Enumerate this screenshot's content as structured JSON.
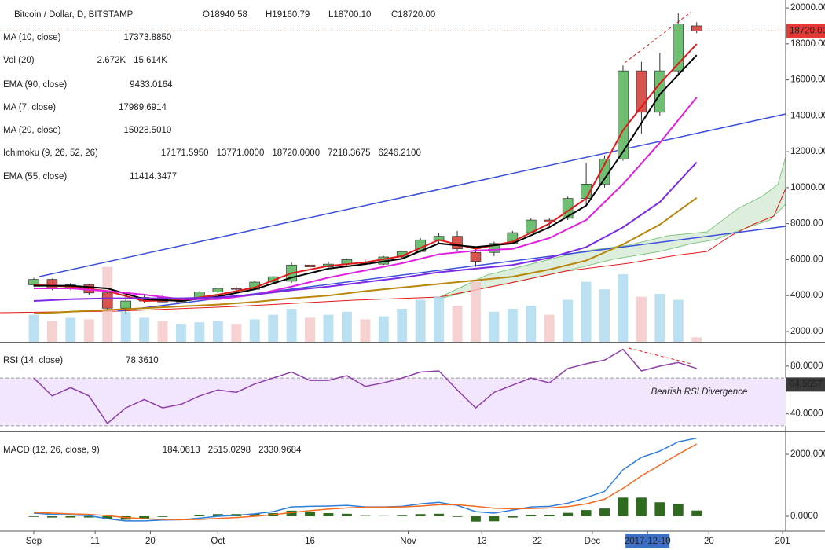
{
  "header": {
    "title": "Bitcoin / Dollar, D, BITSTAMP",
    "ohlc": [
      "O18940.58",
      "H19160.79",
      "L18700.10",
      "C18720.00"
    ]
  },
  "chart_data": [
    {
      "type": "candlestick",
      "legend": [
        {
          "label": "MA (10, close)",
          "values": [
            {
              "text": "17373.8850",
              "color": "#000000"
            }
          ]
        },
        {
          "label": "Vol (20)",
          "values": [
            {
              "text": "2.672K",
              "color": "#000000"
            },
            {
              "text": "15.614K",
              "color": "#2f7ed8"
            }
          ]
        },
        {
          "label": "EMA (90, close)",
          "values": [
            {
              "text": "9433.0164",
              "color": "#b8860b"
            }
          ]
        },
        {
          "label": "MA (7, close)",
          "values": [
            {
              "text": "17989.6914",
              "color": "#e01919"
            }
          ]
        },
        {
          "label": "MA (20, close)",
          "values": [
            {
              "text": "15028.5010",
              "color": "#e020e0"
            }
          ]
        },
        {
          "label": "Ichimoku (9, 26, 52, 26)",
          "values": [
            {
              "text": "17171.5950",
              "color": "#2f7ed8"
            },
            {
              "text": "13771.0000",
              "color": "#8b1a1a"
            },
            {
              "text": "18720.0000",
              "color": "#2e8b2e"
            },
            {
              "text": "7218.3675",
              "color": "#3a6b3a"
            },
            {
              "text": "6246.2100",
              "color": "#e01919"
            }
          ]
        },
        {
          "label": "EMA (55, close)",
          "values": [
            {
              "text": "11414.3477",
              "color": "#7b2be2"
            }
          ]
        }
      ],
      "xlim": [
        -5.5,
        122.5
      ],
      "xticks": [
        {
          "value": 0,
          "label": "Sep"
        },
        {
          "value": 10,
          "label": "11"
        },
        {
          "value": 19,
          "label": "20"
        },
        {
          "value": 30,
          "label": "Oct"
        },
        {
          "value": 45,
          "label": "16"
        },
        {
          "value": 61,
          "label": "Nov"
        },
        {
          "value": 73,
          "label": "13"
        },
        {
          "value": 82,
          "label": "22"
        },
        {
          "value": 91,
          "label": "Dec"
        },
        {
          "value": 100,
          "label": "2017-12-10"
        },
        {
          "value": 110,
          "label": "20"
        },
        {
          "value": 122,
          "label": "201"
        }
      ],
      "ylim": [
        1430,
        20440
      ],
      "yticks": [
        {
          "value": 2000,
          "label": "2000.00"
        },
        {
          "value": 4000,
          "label": "4000.00"
        },
        {
          "value": 6000,
          "label": "6000.00"
        },
        {
          "value": 8000,
          "label": "8000.00"
        },
        {
          "value": 10000,
          "label": "10000.00"
        },
        {
          "value": 12000,
          "label": "12000.00"
        },
        {
          "value": 14000,
          "label": "14000.00"
        },
        {
          "value": 16000,
          "label": "16000.00"
        },
        {
          "value": 18000,
          "label": "18000.00"
        },
        {
          "value": 20000,
          "label": "20000.00"
        }
      ],
      "last_price": {
        "value": 18720,
        "label": "18720.00"
      },
      "x": [
        0,
        3,
        6,
        9,
        12,
        15,
        18,
        21,
        24,
        27,
        30,
        33,
        36,
        39,
        42,
        45,
        48,
        51,
        54,
        57,
        60,
        63,
        66,
        69,
        72,
        75,
        78,
        81,
        84,
        87,
        90,
        93,
        96,
        99,
        102,
        105,
        108
      ],
      "open": [
        4600,
        4900,
        4400,
        4600,
        4150,
        3300,
        3700,
        3900,
        3650,
        3850,
        4200,
        4400,
        4350,
        4750,
        4800,
        5700,
        5600,
        5750,
        5800,
        5750,
        6150,
        6450,
        7100,
        7300,
        6400,
        6400,
        6900,
        7500,
        8200,
        8300,
        9400,
        10200,
        11600,
        16500,
        14200,
        16500,
        19000
      ],
      "high": [
        4980,
        4950,
        4700,
        4650,
        4200,
        3950,
        4100,
        4050,
        3900,
        4250,
        4450,
        4500,
        4800,
        5100,
        5850,
        5800,
        5900,
        6050,
        6000,
        6200,
        6500,
        7200,
        7500,
        7600,
        6700,
        7000,
        7600,
        8300,
        8300,
        9500,
        11400,
        11800,
        16800,
        17000,
        17500,
        19700,
        19200
      ],
      "low": [
        4500,
        4300,
        4300,
        4050,
        3200,
        2980,
        3600,
        3600,
        3600,
        3800,
        4150,
        4300,
        4300,
        4700,
        4700,
        5500,
        5550,
        5600,
        5700,
        5700,
        6100,
        6400,
        6900,
        6500,
        5600,
        6200,
        6850,
        7450,
        7900,
        8200,
        9000,
        10000,
        11500,
        13000,
        14000,
        16200,
        18600
      ],
      "close": [
        4900,
        4400,
        4600,
        4150,
        3300,
        3700,
        3900,
        3650,
        3850,
        4200,
        4400,
        4350,
        4750,
        5050,
        5700,
        5600,
        5750,
        6000,
        5750,
        6150,
        6450,
        7100,
        7300,
        6600,
        5900,
        6900,
        7500,
        8200,
        8100,
        9400,
        10200,
        11600,
        16500,
        14200,
        16500,
        19100,
        18720
      ],
      "volume": [
        18,
        14,
        16,
        15,
        50,
        20,
        16,
        14,
        12,
        13,
        14,
        12,
        15,
        18,
        22,
        16,
        18,
        20,
        15,
        17,
        22,
        28,
        30,
        24,
        40,
        20,
        22,
        24,
        18,
        28,
        40,
        35,
        45,
        30,
        32,
        28,
        3
      ],
      "volume_lim": [
        0,
        55
      ],
      "lines": [
        {
          "color": "#e01919",
          "x": [
            0,
            6,
            12,
            18,
            24,
            30,
            36,
            42,
            48,
            54,
            60,
            66,
            72,
            78,
            84,
            90,
            96,
            102,
            108
          ],
          "values": [
            4600,
            4500,
            4250,
            3700,
            3750,
            4050,
            4450,
            5250,
            5650,
            5850,
            6200,
            7100,
            6600,
            7000,
            8000,
            9400,
            13200,
            15800,
            17990
          ]
        },
        {
          "color": "#000000",
          "x": [
            0,
            6,
            12,
            18,
            24,
            30,
            36,
            42,
            48,
            54,
            60,
            66,
            72,
            78,
            84,
            90,
            96,
            102,
            108
          ],
          "values": [
            4550,
            4550,
            4400,
            3800,
            3700,
            3950,
            4350,
            5000,
            5500,
            5750,
            6050,
            6900,
            6700,
            6900,
            7800,
            9000,
            12000,
            15200,
            17374
          ]
        },
        {
          "color": "#e020e0",
          "x": [
            0,
            6,
            12,
            18,
            24,
            30,
            36,
            42,
            48,
            54,
            60,
            66,
            72,
            78,
            84,
            90,
            96,
            102,
            108
          ],
          "values": [
            4400,
            4400,
            4250,
            4050,
            3800,
            3800,
            4050,
            4500,
            5000,
            5400,
            5800,
            6300,
            6500,
            6600,
            7200,
            8200,
            10200,
            12500,
            15029
          ]
        },
        {
          "color": "#7b2be2",
          "x": [
            0,
            6,
            12,
            18,
            24,
            30,
            36,
            42,
            48,
            54,
            60,
            66,
            72,
            78,
            84,
            90,
            96,
            102,
            108
          ],
          "values": [
            3700,
            3800,
            3850,
            3850,
            3850,
            3900,
            4050,
            4300,
            4500,
            4750,
            5000,
            5300,
            5500,
            5700,
            6100,
            6700,
            7800,
            9200,
            11414
          ]
        },
        {
          "color": "#b8860b",
          "x": [
            0,
            6,
            12,
            18,
            24,
            30,
            36,
            42,
            48,
            54,
            60,
            66,
            72,
            78,
            84,
            90,
            96,
            102,
            108
          ],
          "values": [
            3000,
            3100,
            3200,
            3300,
            3400,
            3500,
            3650,
            3850,
            4000,
            4250,
            4450,
            4650,
            4850,
            5050,
            5450,
            5950,
            6850,
            7950,
            9433
          ]
        }
      ]
    },
    {
      "type": "line",
      "legend": [
        {
          "label": "RSI (14, close)",
          "values": [
            {
              "text": "78.3610",
              "color": "#000000"
            }
          ]
        }
      ],
      "ylim": [
        26,
        99
      ],
      "yticks": [
        {
          "value": 40,
          "label": "40.0000"
        },
        {
          "value": 80,
          "label": "80.0000"
        }
      ],
      "bands": [
        70,
        30
      ],
      "tag": 64.5657,
      "annotation": "Bearish RSI Divergence",
      "x": [
        0,
        3,
        6,
        9,
        12,
        15,
        18,
        21,
        24,
        27,
        30,
        33,
        36,
        39,
        42,
        45,
        48,
        51,
        54,
        57,
        60,
        63,
        66,
        69,
        72,
        75,
        78,
        81,
        84,
        87,
        90,
        93,
        96,
        99,
        102,
        105,
        108
      ],
      "series": [
        {
          "style": "line",
          "color": "#8e3fa8",
          "values": [
            70,
            55,
            62,
            55,
            32,
            45,
            52,
            45,
            48,
            55,
            60,
            58,
            65,
            70,
            75,
            68,
            68,
            72,
            63,
            66,
            70,
            75,
            76,
            60,
            45,
            58,
            64,
            70,
            66,
            78,
            82,
            85,
            94,
            76,
            80,
            83,
            78
          ]
        }
      ]
    },
    {
      "type": "line",
      "legend": [
        {
          "label": "MACD (12, 26, close, 9)",
          "values": [
            {
              "text": "184.0613",
              "color": "#2e6b1e"
            },
            {
              "text": "2515.0298",
              "color": "#2f7ed8"
            },
            {
              "text": "2330.9684",
              "color": "#f26b21"
            }
          ]
        }
      ],
      "ylim": [
        -380,
        2710
      ],
      "yticks": [
        {
          "value": 0,
          "label": "0.0000"
        },
        {
          "value": 2000,
          "label": "2000.0000"
        }
      ],
      "x": [
        0,
        3,
        6,
        9,
        12,
        15,
        18,
        21,
        24,
        27,
        30,
        33,
        36,
        39,
        42,
        45,
        48,
        51,
        54,
        57,
        60,
        63,
        66,
        69,
        72,
        75,
        78,
        81,
        84,
        87,
        90,
        93,
        96,
        99,
        102,
        105,
        108
      ],
      "series": [
        {
          "style": "bar",
          "color": "#2e6b1e",
          "values": [
            -20,
            -40,
            -40,
            -40,
            -100,
            -110,
            -70,
            -20,
            0,
            40,
            70,
            70,
            80,
            100,
            180,
            140,
            100,
            80,
            10,
            5,
            20,
            70,
            80,
            -20,
            -170,
            -160,
            -40,
            50,
            50,
            110,
            200,
            250,
            600,
            600,
            450,
            400,
            185
          ]
        },
        {
          "style": "line",
          "color": "#2f7ed8",
          "values": [
            100,
            60,
            40,
            20,
            -80,
            -150,
            -150,
            -120,
            -110,
            -60,
            0,
            30,
            80,
            150,
            300,
            320,
            330,
            350,
            300,
            300,
            320,
            400,
            450,
            350,
            150,
            100,
            200,
            300,
            320,
            420,
            600,
            800,
            1500,
            1900,
            2100,
            2400,
            2515
          ]
        },
        {
          "style": "line",
          "color": "#f26b21",
          "values": [
            120,
            100,
            80,
            60,
            20,
            -40,
            -80,
            -100,
            -110,
            -100,
            -70,
            -40,
            0,
            50,
            120,
            180,
            230,
            270,
            290,
            295,
            300,
            330,
            370,
            370,
            320,
            260,
            240,
            250,
            270,
            310,
            400,
            550,
            900,
            1300,
            1650,
            2000,
            2330
          ]
        }
      ]
    }
  ]
}
